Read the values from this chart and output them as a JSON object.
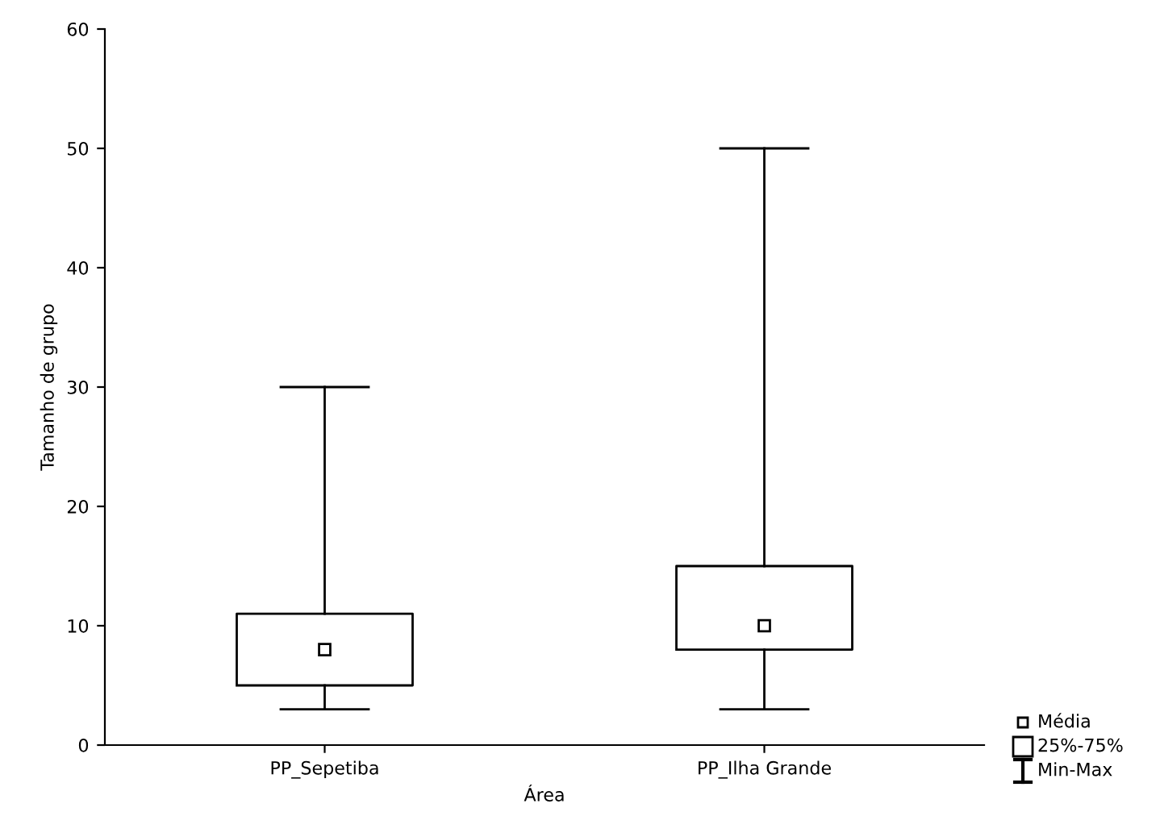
{
  "chart_data": {
    "type": "box",
    "xlabel": "Área",
    "ylabel": "Tamanho de grupo",
    "categories": [
      "PP_Sepetiba",
      "PP_Ilha Grande"
    ],
    "boxes": [
      {
        "low": 3,
        "q1": 5,
        "q3": 11,
        "high": 30,
        "mean": 8
      },
      {
        "low": 3,
        "q1": 8,
        "q3": 15,
        "high": 50,
        "mean": 10
      }
    ],
    "ylim": [
      0,
      60
    ],
    "yticks": [
      0,
      10,
      20,
      30,
      40,
      50,
      60
    ],
    "grid": false,
    "annotations": [
      "Média",
      "25%-75%",
      "Min-Max"
    ]
  }
}
